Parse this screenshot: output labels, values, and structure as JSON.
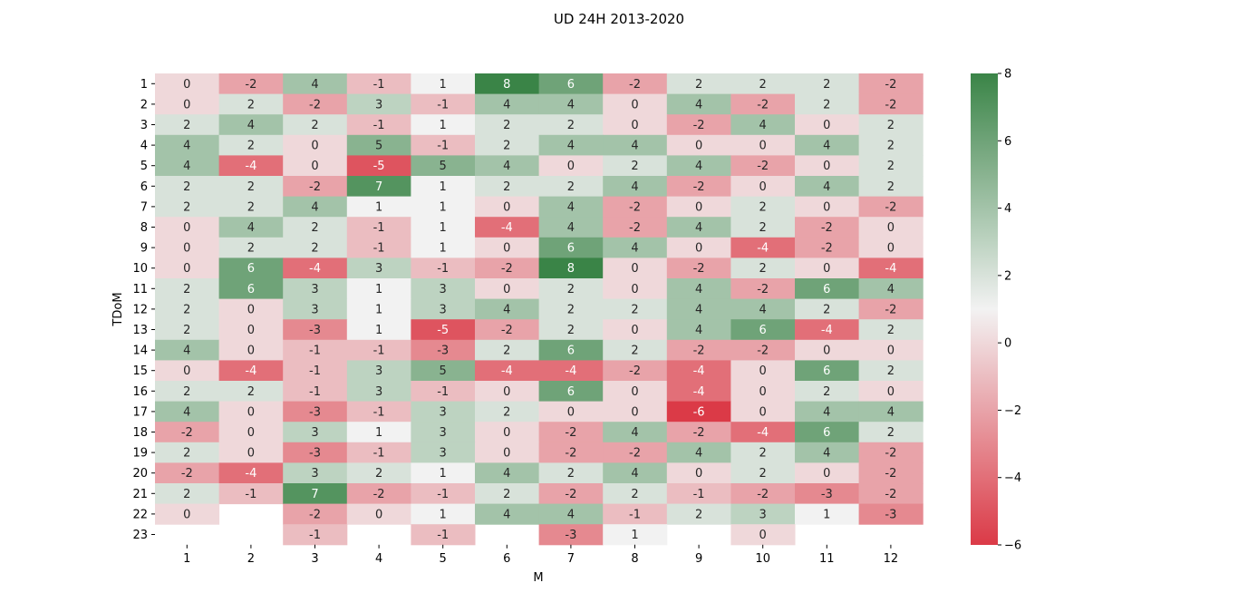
{
  "chart_data": {
    "type": "heatmap",
    "title": "UD 24H 2013-2020",
    "xlabel": "M",
    "ylabel": "TDoM",
    "x_categories": [
      "1",
      "2",
      "3",
      "4",
      "5",
      "6",
      "7",
      "8",
      "9",
      "10",
      "11",
      "12"
    ],
    "y_categories": [
      "1",
      "2",
      "3",
      "4",
      "5",
      "6",
      "7",
      "8",
      "9",
      "10",
      "11",
      "12",
      "13",
      "14",
      "15",
      "16",
      "17",
      "18",
      "19",
      "20",
      "21",
      "22",
      "23"
    ],
    "values": [
      [
        0,
        -2,
        4,
        -1,
        1,
        8,
        6,
        -2,
        2,
        2,
        2,
        -2
      ],
      [
        0,
        2,
        -2,
        3,
        -1,
        4,
        4,
        0,
        4,
        -2,
        2,
        -2
      ],
      [
        2,
        4,
        2,
        -1,
        1,
        2,
        2,
        0,
        -2,
        4,
        0,
        2
      ],
      [
        4,
        2,
        0,
        5,
        -1,
        2,
        4,
        4,
        0,
        0,
        4,
        2
      ],
      [
        4,
        -4,
        0,
        -5,
        5,
        4,
        0,
        2,
        4,
        -2,
        0,
        2
      ],
      [
        2,
        2,
        -2,
        7,
        1,
        2,
        2,
        4,
        -2,
        0,
        4,
        2
      ],
      [
        2,
        2,
        4,
        1,
        1,
        0,
        4,
        -2,
        0,
        2,
        0,
        -2
      ],
      [
        0,
        4,
        2,
        -1,
        1,
        -4,
        4,
        -2,
        4,
        2,
        -2,
        0
      ],
      [
        0,
        2,
        2,
        -1,
        1,
        0,
        6,
        4,
        0,
        -4,
        -2,
        0
      ],
      [
        0,
        6,
        -4,
        3,
        -1,
        -2,
        8,
        0,
        -2,
        2,
        0,
        -4
      ],
      [
        2,
        6,
        3,
        1,
        3,
        0,
        2,
        0,
        4,
        -2,
        6,
        4
      ],
      [
        2,
        0,
        3,
        1,
        3,
        4,
        2,
        2,
        4,
        4,
        2,
        -2
      ],
      [
        2,
        0,
        -3,
        1,
        -5,
        -2,
        2,
        0,
        4,
        6,
        -4,
        2
      ],
      [
        4,
        0,
        -1,
        -1,
        -3,
        2,
        6,
        2,
        -2,
        -2,
        0,
        0
      ],
      [
        0,
        -4,
        -1,
        3,
        5,
        -4,
        -4,
        -2,
        -4,
        0,
        6,
        2
      ],
      [
        2,
        2,
        -1,
        3,
        -1,
        0,
        6,
        0,
        -4,
        0,
        2,
        0
      ],
      [
        4,
        0,
        -3,
        -1,
        3,
        2,
        0,
        0,
        -6,
        0,
        4,
        4
      ],
      [
        -2,
        0,
        3,
        1,
        3,
        0,
        -2,
        4,
        -2,
        -4,
        6,
        2
      ],
      [
        2,
        0,
        -3,
        -1,
        3,
        0,
        -2,
        -2,
        4,
        2,
        4,
        -2
      ],
      [
        -2,
        -4,
        3,
        2,
        1,
        4,
        2,
        4,
        0,
        2,
        0,
        -2
      ],
      [
        2,
        -1,
        7,
        -2,
        -1,
        2,
        -2,
        2,
        -1,
        -2,
        -3,
        -2
      ],
      [
        0,
        null,
        -2,
        0,
        1,
        4,
        4,
        -1,
        2,
        3,
        1,
        -3
      ],
      [
        null,
        null,
        -1,
        null,
        -1,
        null,
        -3,
        1,
        null,
        0,
        null,
        null
      ]
    ],
    "vmin": -6,
    "vmax": 8,
    "colorbar_ticks": [
      "8",
      "6",
      "4",
      "2",
      "0",
      "−2",
      "−4",
      "−6"
    ],
    "colorbar_values": [
      8,
      6,
      4,
      2,
      0,
      -2,
      -4,
      -6
    ],
    "colormap": {
      "low": "#db3a47",
      "mid": "#f2f2f2",
      "high": "#3a8447"
    },
    "annotate": true,
    "grid": false
  }
}
